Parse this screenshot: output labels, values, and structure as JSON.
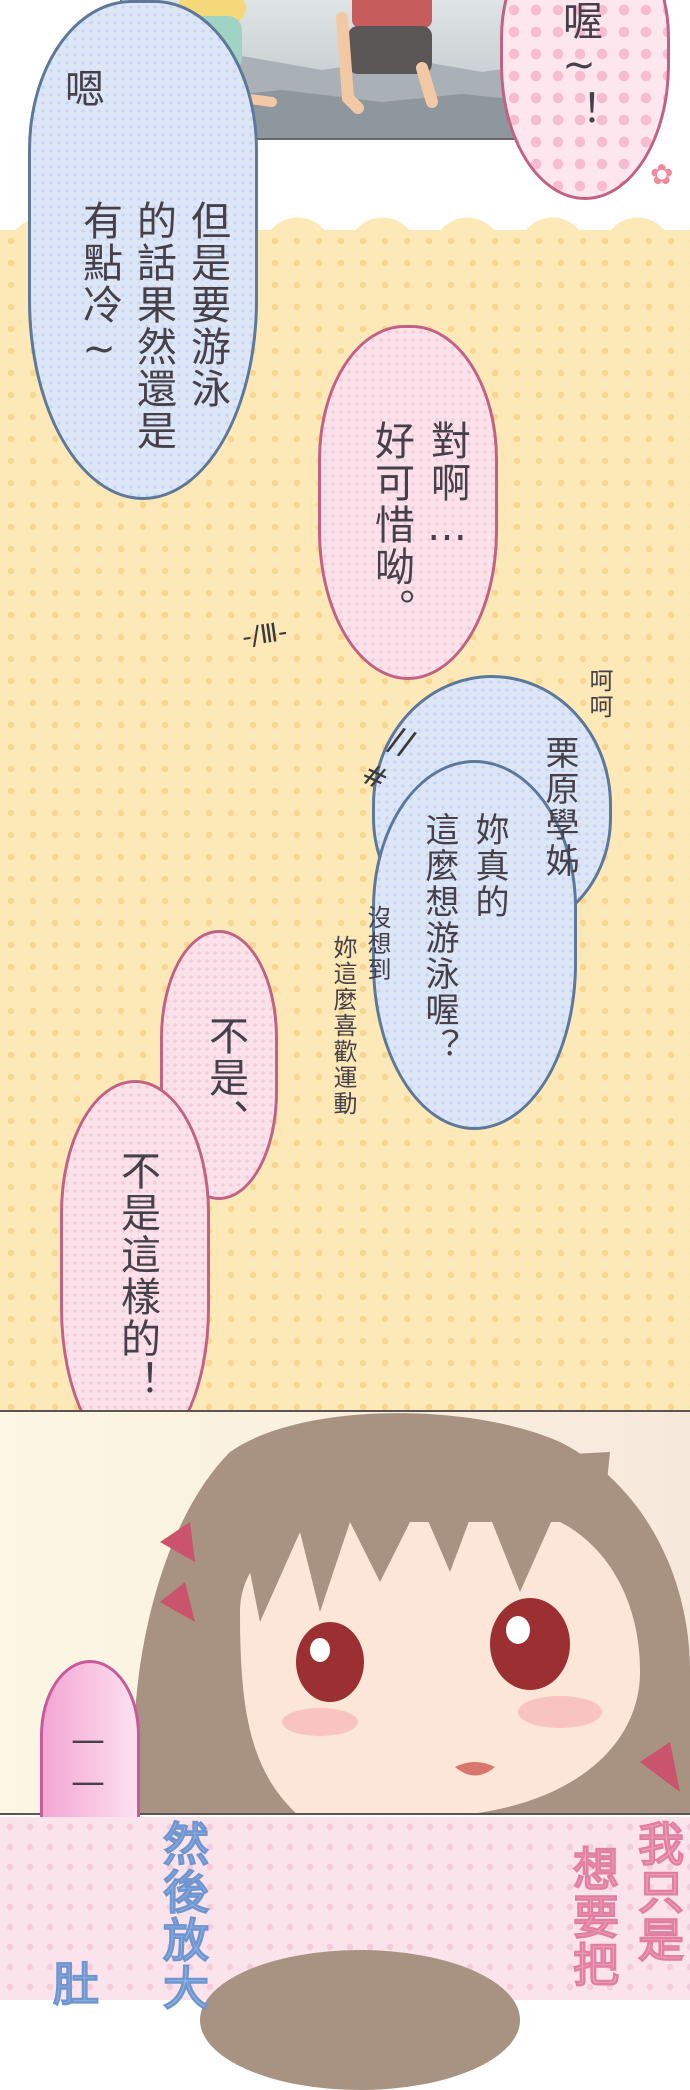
{
  "bubbles": {
    "top_right": "喔~！",
    "en": "嗯",
    "swim_col1": "但是要游泳",
    "swim_col2": "的話果然還是",
    "swim_col3": "有點冷~",
    "pity_col1": "對啊…",
    "pity_col2": "好可惜呦。",
    "hehe": "呵呵",
    "kuri_col1": "栗原學姊",
    "kuri_col2": "妳真的",
    "kuri_col3": "這麼想游泳喔？",
    "aside_col1": "沒想到",
    "aside_col2": "妳這麼喜歡運動",
    "no_col1": "不是、",
    "no_col2": "不是這樣的！",
    "dots": "——…",
    "bottom_blue_col1": "然後放大",
    "bottom_blue_col2": "肚",
    "bottom_pink_col1": "我只是",
    "bottom_pink_col2": "想要把"
  },
  "sfx": {
    "sweat": "-/Ⅲ-",
    "dash": "//",
    "hash": "#"
  }
}
